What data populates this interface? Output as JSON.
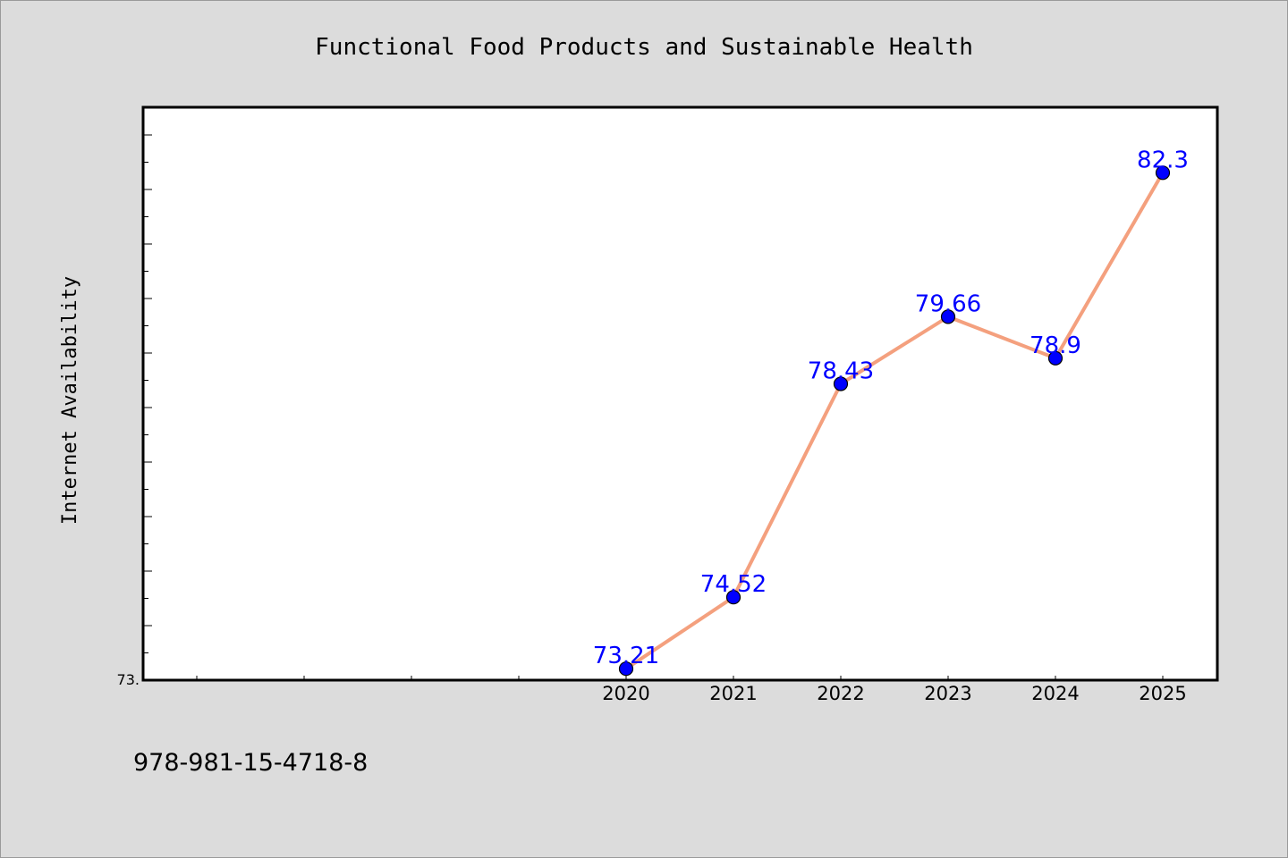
{
  "chart_data": {
    "type": "line",
    "title": "Functional Food Products and Sustainable Health",
    "xlabel": "",
    "ylabel": "Internet Availability",
    "x": [
      "2020",
      "2021",
      "2022",
      "2023",
      "2024",
      "2025"
    ],
    "series": [
      {
        "values": [
          73.21,
          74.52,
          78.43,
          79.66,
          78.9,
          82.3
        ],
        "labels": [
          "73.21",
          "74.52",
          "78.43",
          "79.66",
          "78.9",
          "82.3"
        ]
      }
    ],
    "ytick_labels": [
      "73."
    ],
    "ylim": [
      73.0,
      83.5
    ],
    "grid": false,
    "line_color": "#f4a07e",
    "marker_color": "#0000ff",
    "label_color": "#0000ff",
    "background_color": "#dcdcdc",
    "plot_background_color": "#ffffff"
  },
  "footer": {
    "isbn": "978-981-15-4718-8"
  }
}
